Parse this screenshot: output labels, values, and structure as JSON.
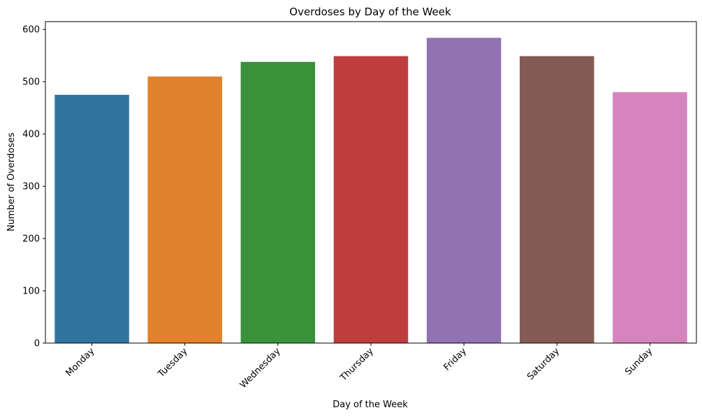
{
  "chart_data": {
    "type": "bar",
    "title": "Overdoses by Day of the Week",
    "xlabel": "Day of the Week",
    "ylabel": "Number of Overdoses",
    "categories": [
      "Monday",
      "Tuesday",
      "Wednesday",
      "Thursday",
      "Friday",
      "Saturday",
      "Sunday"
    ],
    "values": [
      475,
      510,
      538,
      549,
      584,
      549,
      480
    ],
    "colors": [
      "#3274a1",
      "#e1812c",
      "#3a923a",
      "#c03d3e",
      "#9372b2",
      "#845b53",
      "#d684bd"
    ],
    "ylim": [
      0,
      615
    ],
    "yticks": [
      0,
      100,
      200,
      300,
      400,
      500,
      600
    ],
    "grid": false,
    "legend": "none"
  }
}
